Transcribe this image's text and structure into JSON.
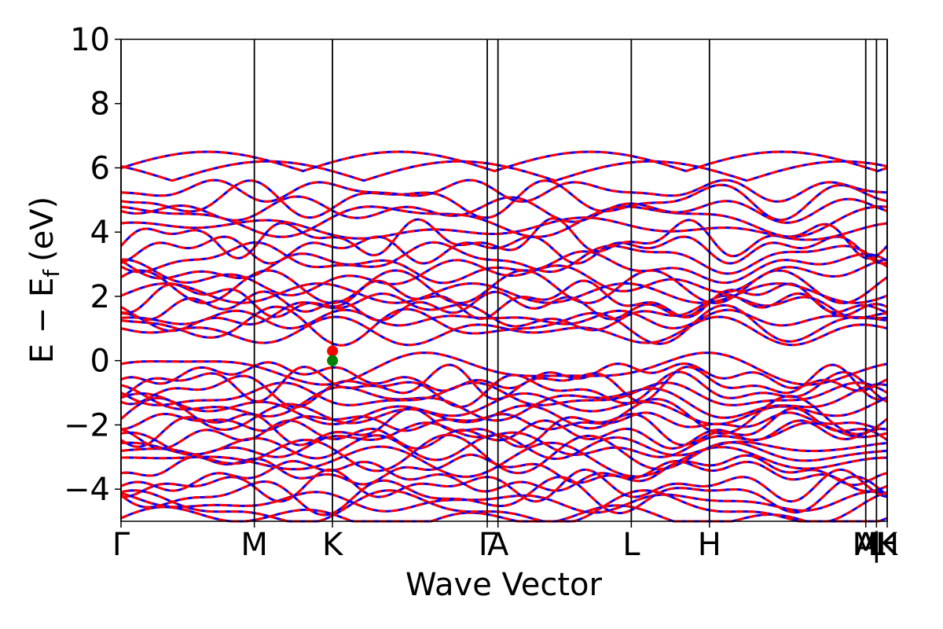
{
  "chart_data": {
    "type": "line",
    "title": "",
    "xlabel": "Wave Vector",
    "ylabel": "E − E",
    "ylabel_subscript": "f",
    "ylabel_unit": "(eV)",
    "ylim": [
      -5,
      10
    ],
    "yticks": [
      {
        "value": 10,
        "label": "10"
      },
      {
        "value": 8,
        "label": "8"
      },
      {
        "value": 6,
        "label": "6"
      },
      {
        "value": 4,
        "label": "4"
      },
      {
        "value": 2,
        "label": "2"
      },
      {
        "value": 0,
        "label": "0"
      },
      {
        "value": -2,
        "label": "−2"
      },
      {
        "value": -4,
        "label": "−4"
      }
    ],
    "xlim": [
      0,
      1
    ],
    "kpath": [
      {
        "x": 0.0,
        "label": "Γ"
      },
      {
        "x": 0.174,
        "label": "M"
      },
      {
        "x": 0.276,
        "label": "K"
      },
      {
        "x": 0.478,
        "label": "Γ"
      },
      {
        "x": 0.492,
        "label": "A"
      },
      {
        "x": 0.666,
        "label": "L"
      },
      {
        "x": 0.768,
        "label": "H"
      },
      {
        "x": 0.972,
        "label": "A"
      },
      {
        "x": 0.972,
        "label": "M"
      },
      {
        "x": 0.986,
        "label": "|"
      },
      {
        "x": 0.986,
        "label": "L"
      },
      {
        "x": 1.0,
        "label": "H"
      },
      {
        "x": 1.0,
        "label": "K"
      }
    ],
    "grid": false,
    "legend": "none",
    "colors": {
      "series_a": "#0000ff",
      "series_b": "#ff0000",
      "vbm": "#008000",
      "cbm": "#ff0000"
    },
    "series": [
      {
        "style": "solid",
        "color": "#0000ff"
      },
      {
        "style": "dashed",
        "color": "#ff0000"
      }
    ],
    "band_edges": [
      {
        "x": 0.276,
        "y": 0.3,
        "color": "#ff0000"
      },
      {
        "x": 0.276,
        "y": 0.0,
        "color": "#008000"
      }
    ]
  }
}
